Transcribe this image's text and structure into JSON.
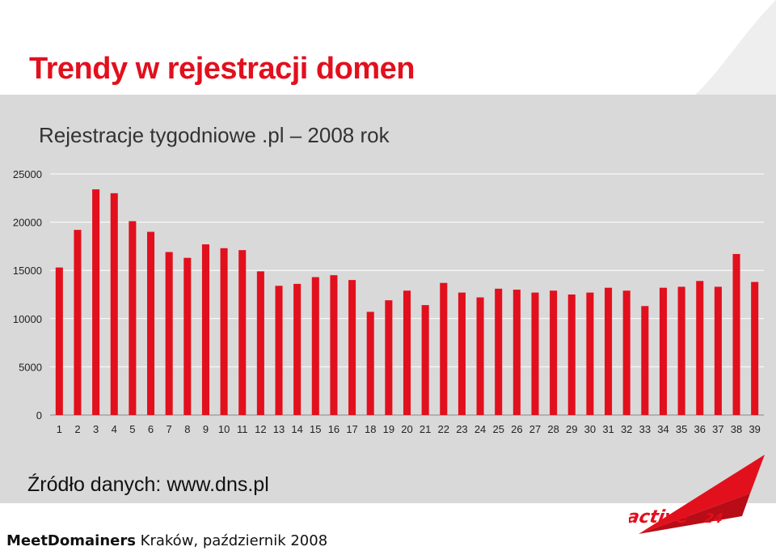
{
  "slide": {
    "title": "Trendy w rejestracji domen",
    "source": "Źródło danych: www.dns.pl",
    "footer_brand": "MeetDomainers",
    "footer_rest": " Kraków, październik 2008",
    "logo_text": "active 24"
  },
  "colors": {
    "accent": "#e2101d",
    "band": "#d9d9d9",
    "bar": "#e2101d"
  },
  "chart_data": {
    "type": "bar",
    "title": "Rejestracje tygodniowe .pl – 2008 rok",
    "xlabel": "",
    "ylabel": "",
    "ylim": [
      0,
      25000
    ],
    "yticks": [
      0,
      5000,
      10000,
      15000,
      20000,
      25000
    ],
    "grid": true,
    "legend": "none",
    "categories": [
      "1",
      "2",
      "3",
      "4",
      "5",
      "6",
      "7",
      "8",
      "9",
      "10",
      "11",
      "12",
      "13",
      "14",
      "15",
      "16",
      "17",
      "18",
      "19",
      "20",
      "21",
      "22",
      "23",
      "24",
      "25",
      "26",
      "27",
      "28",
      "29",
      "30",
      "31",
      "32",
      "33",
      "34",
      "35",
      "36",
      "37",
      "38",
      "39"
    ],
    "values": [
      15300,
      19200,
      23400,
      23000,
      20100,
      19000,
      16900,
      16300,
      17700,
      17300,
      17100,
      14900,
      13400,
      13600,
      14300,
      14500,
      14000,
      10700,
      11900,
      12900,
      11400,
      13700,
      12700,
      12200,
      13100,
      13000,
      12700,
      12900,
      12500,
      12700,
      13200,
      12900,
      11300,
      13200,
      13300,
      13900,
      13300,
      16700,
      13800
    ]
  }
}
